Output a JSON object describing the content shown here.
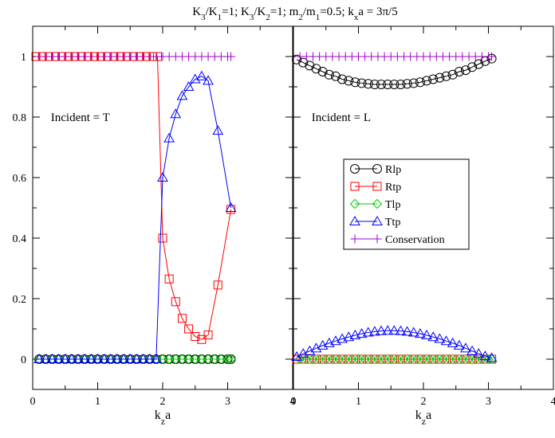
{
  "chart_data": {
    "type": "line",
    "title_parts": [
      {
        "t": "K",
        "s": "n"
      },
      {
        "t": "3",
        "s": "sub"
      },
      {
        "t": "/K",
        "s": "n"
      },
      {
        "t": "1",
        "s": "sub"
      },
      {
        "t": "=1;    K",
        "s": "n"
      },
      {
        "t": "3",
        "s": "sub"
      },
      {
        "t": "/K",
        "s": "n"
      },
      {
        "t": "2",
        "s": "sub"
      },
      {
        "t": "=1;    m",
        "s": "n"
      },
      {
        "t": "2",
        "s": "sub"
      },
      {
        "t": "/m",
        "s": "n"
      },
      {
        "t": "1",
        "s": "sub"
      },
      {
        "t": "=0.5;  k",
        "s": "n"
      },
      {
        "t": "x",
        "s": "sub"
      },
      {
        "t": "a = 3π/5",
        "s": "n"
      }
    ],
    "xlabel": {
      "main": "k",
      "sub": "z",
      "rest": "a"
    },
    "legend": {
      "placement": "middle-center of right panel",
      "entries": [
        {
          "label": "Rlp",
          "color": "#000000",
          "marker": "circle"
        },
        {
          "label": "Rtp",
          "color": "#ff0000",
          "marker": "square"
        },
        {
          "label": "Tlp",
          "color": "#00cc00",
          "marker": "diamond"
        },
        {
          "label": "Ttp",
          "color": "#0000ff",
          "marker": "triangle"
        },
        {
          "label": "Conservation",
          "color": "#a000c8",
          "marker": "plus"
        }
      ]
    },
    "panels": [
      {
        "xlim": [
          0,
          4
        ],
        "ylim": [
          -0.1,
          1.1
        ],
        "xticks": [
          0,
          1,
          2,
          3,
          4
        ],
        "xticklabels": [
          "0",
          "1",
          "2",
          "3",
          "4"
        ],
        "yticks": [
          0,
          0.2,
          0.4,
          0.6,
          0.8,
          1
        ],
        "yticklabels": [
          "0",
          "0.2",
          "0.4",
          "0.6",
          "0.8",
          "1"
        ],
        "annotation": "Incident = T",
        "annotation_pos": [
          0.5,
          0.8
        ],
        "series": [
          {
            "key": "Rlp",
            "color": "#000000",
            "marker": "circle",
            "x": [
              0.1,
              0.2,
              0.3,
              0.4,
              0.5,
              0.6,
              0.7,
              0.8,
              0.9,
              1.0,
              1.1,
              1.2,
              1.3,
              1.4,
              1.5,
              1.6,
              1.7,
              1.8,
              1.9,
              2.0,
              2.1,
              2.2,
              2.3,
              2.4,
              2.5,
              2.6,
              2.7,
              2.8,
              2.9,
              3.0,
              3.05
            ],
            "y": [
              0,
              0,
              0,
              0,
              0,
              0,
              0,
              0,
              0,
              0,
              0,
              0,
              0,
              0,
              0,
              0,
              0,
              0,
              0,
              0,
              0,
              0,
              0,
              0,
              0,
              0,
              0,
              0,
              0,
              0,
              0
            ]
          },
          {
            "key": "Rtp",
            "color": "#ff0000",
            "marker": "square",
            "x": [
              0.05,
              0.15,
              0.25,
              0.35,
              0.45,
              0.55,
              0.65,
              0.75,
              0.85,
              0.95,
              1.05,
              1.15,
              1.25,
              1.35,
              1.45,
              1.55,
              1.65,
              1.75,
              1.85,
              1.92,
              2.0,
              2.1,
              2.2,
              2.3,
              2.4,
              2.5,
              2.6,
              2.7,
              2.85,
              3.05
            ],
            "y": [
              1,
              1,
              1,
              1,
              1,
              1,
              1,
              1,
              1,
              1,
              1,
              1,
              1,
              1,
              1,
              1,
              1,
              1,
              1,
              1,
              0.4,
              0.265,
              0.19,
              0.135,
              0.1,
              0.075,
              0.065,
              0.08,
              0.245,
              0.495
            ]
          },
          {
            "key": "Tlp",
            "color": "#00cc00",
            "marker": "diamond",
            "x": [
              0.1,
              0.2,
              0.3,
              0.4,
              0.5,
              0.6,
              0.7,
              0.8,
              0.9,
              1.0,
              1.1,
              1.2,
              1.3,
              1.4,
              1.5,
              1.6,
              1.7,
              1.8,
              1.9,
              2.0,
              2.1,
              2.2,
              2.3,
              2.4,
              2.5,
              2.6,
              2.7,
              2.8,
              2.9,
              3.0,
              3.05
            ],
            "y": [
              0,
              0,
              0,
              0,
              0,
              0,
              0,
              0,
              0,
              0,
              0,
              0,
              0,
              0,
              0,
              0,
              0,
              0,
              0,
              0,
              0,
              0,
              0,
              0,
              0,
              0,
              0,
              0,
              0,
              0,
              0
            ]
          },
          {
            "key": "Ttp",
            "color": "#0000ff",
            "marker": "triangle",
            "x": [
              0.1,
              0.2,
              0.3,
              0.4,
              0.5,
              0.6,
              0.7,
              0.8,
              0.9,
              1.0,
              1.1,
              1.2,
              1.3,
              1.4,
              1.5,
              1.6,
              1.7,
              1.8,
              1.9,
              2.0,
              2.1,
              2.2,
              2.3,
              2.4,
              2.5,
              2.6,
              2.7,
              2.85,
              3.05
            ],
            "y": [
              0,
              0,
              0,
              0,
              0,
              0,
              0,
              0,
              0,
              0,
              0,
              0,
              0,
              0,
              0,
              0,
              0,
              0,
              0,
              0.6,
              0.73,
              0.81,
              0.87,
              0.9,
              0.925,
              0.935,
              0.92,
              0.755,
              0.5
            ]
          },
          {
            "key": "Conservation",
            "color": "#a000c8",
            "marker": "plus",
            "x": [
              0.1,
              0.2,
              0.3,
              0.4,
              0.5,
              0.6,
              0.7,
              0.8,
              0.9,
              1.0,
              1.1,
              1.2,
              1.3,
              1.4,
              1.5,
              1.6,
              1.7,
              1.8,
              1.9,
              2.0,
              2.1,
              2.2,
              2.3,
              2.4,
              2.5,
              2.6,
              2.7,
              2.8,
              2.9,
              3.0,
              3.05
            ],
            "y": [
              1,
              1,
              1,
              1,
              1,
              1,
              1,
              1,
              1,
              1,
              1,
              1,
              1,
              1,
              1,
              1,
              1,
              1,
              1,
              1,
              1,
              1,
              1,
              1,
              1,
              1,
              1,
              1,
              1,
              1,
              1
            ]
          }
        ]
      },
      {
        "xlim": [
          0,
          4
        ],
        "ylim": [
          -0.1,
          1.1
        ],
        "xticks": [
          0,
          1,
          2,
          3,
          4
        ],
        "xticklabels": [
          "0",
          "1",
          "2",
          "3",
          "4"
        ],
        "yticks": [
          0,
          0.2,
          0.4,
          0.6,
          0.8,
          1
        ],
        "yticklabels": [],
        "annotation": "Incident = L",
        "annotation_pos": [
          0.5,
          0.8
        ],
        "series": [
          {
            "key": "Rlp",
            "color": "#000000",
            "marker": "circle",
            "x": [
              0.05,
              0.15,
              0.25,
              0.35,
              0.45,
              0.55,
              0.65,
              0.75,
              0.85,
              0.95,
              1.05,
              1.15,
              1.25,
              1.35,
              1.45,
              1.55,
              1.65,
              1.75,
              1.85,
              1.95,
              2.05,
              2.15,
              2.25,
              2.35,
              2.45,
              2.55,
              2.65,
              2.75,
              2.85,
              2.95,
              3.05
            ],
            "y": [
              0.99,
              0.98,
              0.97,
              0.96,
              0.95,
              0.94,
              0.935,
              0.925,
              0.92,
              0.915,
              0.912,
              0.91,
              0.908,
              0.908,
              0.908,
              0.908,
              0.908,
              0.91,
              0.912,
              0.915,
              0.92,
              0.925,
              0.93,
              0.935,
              0.94,
              0.95,
              0.955,
              0.965,
              0.975,
              0.985,
              0.993
            ]
          },
          {
            "key": "Rtp",
            "color": "#ff0000",
            "marker": "square",
            "x": [
              0.05,
              0.15,
              0.25,
              0.35,
              0.45,
              0.55,
              0.65,
              0.75,
              0.85,
              0.95,
              1.05,
              1.15,
              1.25,
              1.35,
              1.45,
              1.55,
              1.65,
              1.75,
              1.85,
              1.95,
              2.05,
              2.15,
              2.25,
              2.35,
              2.45,
              2.55,
              2.65,
              2.75,
              2.85,
              2.95,
              3.05
            ],
            "y": [
              0,
              0,
              0,
              0,
              0,
              0,
              0,
              0,
              0,
              0,
              0,
              0,
              0,
              0,
              0,
              0,
              0,
              0,
              0,
              0,
              0,
              0,
              0,
              0,
              0,
              0,
              0,
              0,
              0,
              0,
              0
            ]
          },
          {
            "key": "Tlp",
            "color": "#00cc00",
            "marker": "diamond",
            "x": [
              0.1,
              0.2,
              0.3,
              0.4,
              0.5,
              0.6,
              0.7,
              0.8,
              0.9,
              1.0,
              1.1,
              1.2,
              1.3,
              1.4,
              1.5,
              1.6,
              1.7,
              1.8,
              1.9,
              2.0,
              2.1,
              2.2,
              2.3,
              2.4,
              2.5,
              2.6,
              2.7,
              2.8,
              2.9,
              3.0,
              3.05
            ],
            "y": [
              0,
              0,
              0,
              0,
              0,
              0,
              0,
              0,
              0,
              0,
              0,
              0,
              0,
              0,
              0,
              0,
              0,
              0,
              0,
              0,
              0,
              0,
              0,
              0,
              0,
              0,
              0,
              0,
              0,
              0,
              0
            ]
          },
          {
            "key": "Ttp",
            "color": "#0000ff",
            "marker": "triangle",
            "x": [
              0.05,
              0.15,
              0.25,
              0.35,
              0.45,
              0.55,
              0.65,
              0.75,
              0.85,
              0.95,
              1.05,
              1.15,
              1.25,
              1.35,
              1.45,
              1.55,
              1.65,
              1.75,
              1.85,
              1.95,
              2.05,
              2.15,
              2.25,
              2.35,
              2.45,
              2.55,
              2.65,
              2.75,
              2.85,
              2.95,
              3.05
            ],
            "y": [
              0.008,
              0.018,
              0.027,
              0.036,
              0.045,
              0.053,
              0.06,
              0.067,
              0.073,
              0.079,
              0.084,
              0.088,
              0.091,
              0.093,
              0.094,
              0.094,
              0.093,
              0.091,
              0.088,
              0.084,
              0.079,
              0.073,
              0.067,
              0.06,
              0.053,
              0.045,
              0.036,
              0.027,
              0.018,
              0.01,
              0.004
            ]
          },
          {
            "key": "Conservation",
            "color": "#a000c8",
            "marker": "plus",
            "x": [
              0.1,
              0.2,
              0.3,
              0.4,
              0.5,
              0.6,
              0.7,
              0.8,
              0.9,
              1.0,
              1.1,
              1.2,
              1.3,
              1.4,
              1.5,
              1.6,
              1.7,
              1.8,
              1.9,
              2.0,
              2.1,
              2.2,
              2.3,
              2.4,
              2.5,
              2.6,
              2.7,
              2.8,
              2.9,
              3.0,
              3.05
            ],
            "y": [
              1,
              1,
              1,
              1,
              1,
              1,
              1,
              1,
              1,
              1,
              1,
              1,
              1,
              1,
              1,
              1,
              1,
              1,
              1,
              1,
              1,
              1,
              1,
              1,
              1,
              1,
              1,
              1,
              1,
              1,
              1
            ]
          }
        ]
      }
    ]
  }
}
